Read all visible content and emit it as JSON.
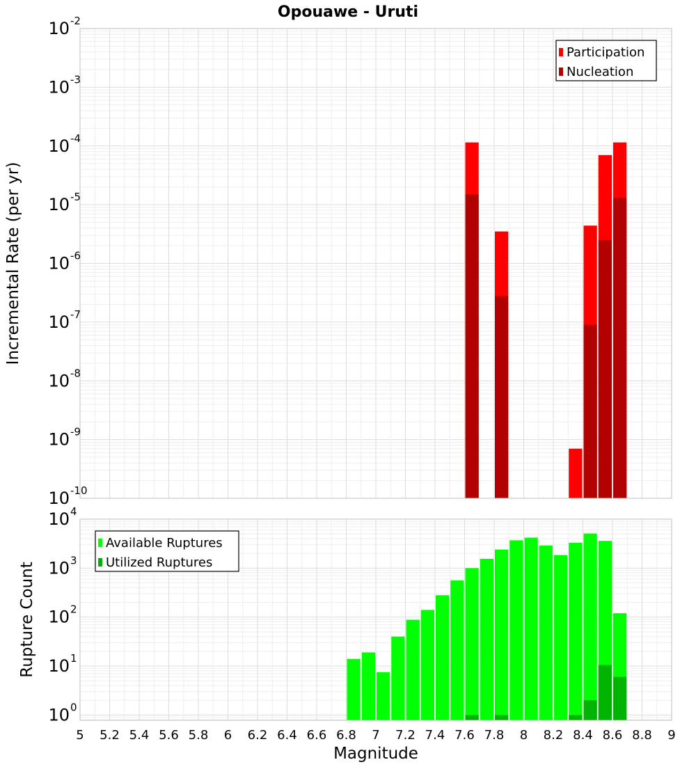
{
  "title": "Opouawe - Uruti",
  "colors": {
    "participation": "#ff0000",
    "nucleation": "#b30000",
    "available": "#00ff00",
    "utilized": "#00b300",
    "grid": "#e6e6e6",
    "frame": "#bfbfbf"
  },
  "chart_data": [
    {
      "type": "bar",
      "log_scale_y": true,
      "xlabel": "Magnitude",
      "ylabel": "Incremental Rate (per yr)",
      "xlim": [
        5,
        9
      ],
      "ylim": [
        1e-10,
        0.01
      ],
      "y_ticks": [
        {
          "base": "10",
          "exp": "-10",
          "value": 1e-10
        },
        {
          "base": "10",
          "exp": "-9",
          "value": 1e-09
        },
        {
          "base": "10",
          "exp": "-8",
          "value": 1e-08
        },
        {
          "base": "10",
          "exp": "-7",
          "value": 1e-07
        },
        {
          "base": "10",
          "exp": "-6",
          "value": 1e-06
        },
        {
          "base": "10",
          "exp": "-5",
          "value": 1e-05
        },
        {
          "base": "10",
          "exp": "-4",
          "value": 0.0001
        },
        {
          "base": "10",
          "exp": "-3",
          "value": 0.001
        },
        {
          "base": "10",
          "exp": "-2",
          "value": 0.01
        }
      ],
      "grid": true,
      "legend_position": "top-right",
      "series": [
        {
          "name": "Participation",
          "color": "#ff0000",
          "points": [
            {
              "x": 7.65,
              "y": 0.000115
            },
            {
              "x": 7.85,
              "y": 3.5e-06
            },
            {
              "x": 8.35,
              "y": 7e-10
            },
            {
              "x": 8.45,
              "y": 4.4e-06
            },
            {
              "x": 8.55,
              "y": 7e-05
            },
            {
              "x": 8.65,
              "y": 0.000115
            }
          ]
        },
        {
          "name": "Nucleation",
          "color": "#b30000",
          "points": [
            {
              "x": 7.65,
              "y": 1.5e-05
            },
            {
              "x": 7.85,
              "y": 2.8e-07
            },
            {
              "x": 8.45,
              "y": 9e-08
            },
            {
              "x": 8.55,
              "y": 2.5e-06
            },
            {
              "x": 8.65,
              "y": 1.3e-05
            }
          ]
        }
      ]
    },
    {
      "type": "bar",
      "log_scale_y": true,
      "xlabel": "Magnitude",
      "ylabel": "Rupture Count",
      "xlim": [
        5,
        9
      ],
      "ylim": [
        0.78,
        10000
      ],
      "x_ticks": [
        "5",
        "5.2",
        "5.4",
        "5.6",
        "5.8",
        "6",
        "6.2",
        "6.4",
        "6.6",
        "6.8",
        "7",
        "7.2",
        "7.4",
        "7.6",
        "7.8",
        "8",
        "8.2",
        "8.4",
        "8.6",
        "8.8",
        "9"
      ],
      "y_ticks": [
        {
          "base": "10",
          "exp": "0",
          "value": 1
        },
        {
          "base": "10",
          "exp": "1",
          "value": 10
        },
        {
          "base": "10",
          "exp": "2",
          "value": 100
        },
        {
          "base": "10",
          "exp": "3",
          "value": 1000
        },
        {
          "base": "10",
          "exp": "4",
          "value": 10000
        }
      ],
      "grid": true,
      "legend_position": "top-left",
      "series": [
        {
          "name": "Available Ruptures",
          "color": "#00ff00",
          "points": [
            {
              "x": 6.85,
              "y": 14
            },
            {
              "x": 6.95,
              "y": 19
            },
            {
              "x": 7.05,
              "y": 7.5
            },
            {
              "x": 7.15,
              "y": 40
            },
            {
              "x": 7.25,
              "y": 88
            },
            {
              "x": 7.35,
              "y": 140
            },
            {
              "x": 7.45,
              "y": 280
            },
            {
              "x": 7.55,
              "y": 560
            },
            {
              "x": 7.65,
              "y": 1000
            },
            {
              "x": 7.75,
              "y": 1550
            },
            {
              "x": 7.85,
              "y": 2400
            },
            {
              "x": 7.95,
              "y": 3700
            },
            {
              "x": 8.05,
              "y": 4200
            },
            {
              "x": 8.15,
              "y": 2900
            },
            {
              "x": 8.25,
              "y": 1850
            },
            {
              "x": 8.35,
              "y": 3300
            },
            {
              "x": 8.45,
              "y": 5100
            },
            {
              "x": 8.55,
              "y": 3600
            },
            {
              "x": 8.65,
              "y": 120
            }
          ]
        },
        {
          "name": "Utilized Ruptures",
          "color": "#00b300",
          "points": [
            {
              "x": 7.65,
              "y": 1
            },
            {
              "x": 7.85,
              "y": 1
            },
            {
              "x": 8.35,
              "y": 1
            },
            {
              "x": 8.45,
              "y": 2
            },
            {
              "x": 8.55,
              "y": 10.5
            },
            {
              "x": 8.65,
              "y": 6
            }
          ]
        }
      ]
    }
  ]
}
